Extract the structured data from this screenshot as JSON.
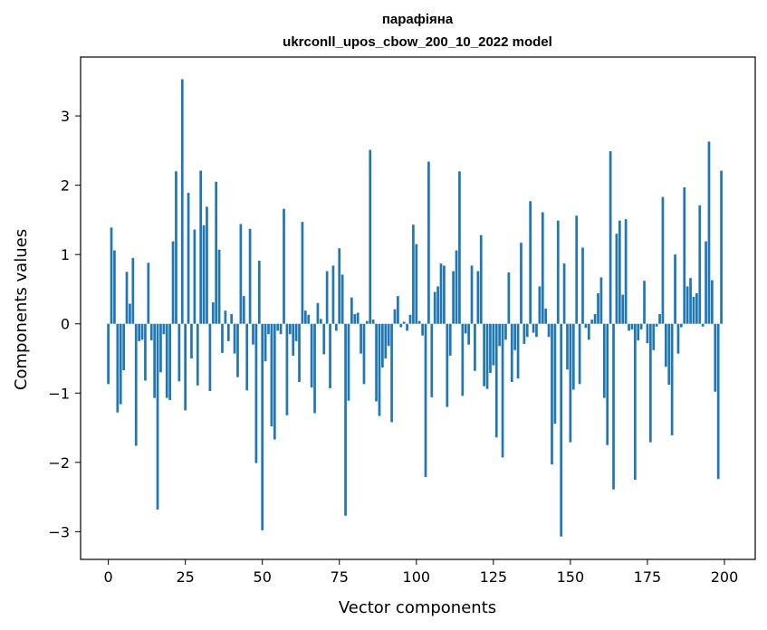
{
  "chart_data": {
    "type": "bar",
    "title": "парафіяна",
    "subtitle": "ukrconll_upos_cbow_200_10_2022 model",
    "xlabel": "Vector components",
    "ylabel": "Components values",
    "xlim": [
      -9,
      210
    ],
    "ylim": [
      -3.4,
      3.85
    ],
    "x_ticks": [
      0,
      25,
      50,
      75,
      100,
      125,
      150,
      175,
      200
    ],
    "x_tick_labels": [
      "0",
      "25",
      "50",
      "75",
      "100",
      "125",
      "150",
      "175",
      "200"
    ],
    "y_ticks": [
      -3,
      -2,
      -1,
      0,
      1,
      2,
      3
    ],
    "y_tick_labels": [
      "−3",
      "−2",
      "−1",
      "0",
      "1",
      "2",
      "3"
    ],
    "grid": false,
    "legend": false,
    "bar_color": "#1f77b4",
    "x": [
      0,
      1,
      2,
      3,
      4,
      5,
      6,
      7,
      8,
      9,
      10,
      11,
      12,
      13,
      14,
      15,
      16,
      17,
      18,
      19,
      20,
      21,
      22,
      23,
      24,
      25,
      26,
      27,
      28,
      29,
      30,
      31,
      32,
      33,
      34,
      35,
      36,
      37,
      38,
      39,
      40,
      41,
      42,
      43,
      44,
      45,
      46,
      47,
      48,
      49,
      50,
      51,
      52,
      53,
      54,
      55,
      56,
      57,
      58,
      59,
      60,
      61,
      62,
      63,
      64,
      65,
      66,
      67,
      68,
      69,
      70,
      71,
      72,
      73,
      74,
      75,
      76,
      77,
      78,
      79,
      80,
      81,
      82,
      83,
      84,
      85,
      86,
      87,
      88,
      89,
      90,
      91,
      92,
      93,
      94,
      95,
      96,
      97,
      98,
      99,
      100,
      101,
      102,
      103,
      104,
      105,
      106,
      107,
      108,
      109,
      110,
      111,
      112,
      113,
      114,
      115,
      116,
      117,
      118,
      119,
      120,
      121,
      122,
      123,
      124,
      125,
      126,
      127,
      128,
      129,
      130,
      131,
      132,
      133,
      134,
      135,
      136,
      137,
      138,
      139,
      140,
      141,
      142,
      143,
      144,
      145,
      146,
      147,
      148,
      149,
      150,
      151,
      152,
      153,
      154,
      155,
      156,
      157,
      158,
      159,
      160,
      161,
      162,
      163,
      164,
      165,
      166,
      167,
      168,
      169,
      170,
      171,
      172,
      173,
      174,
      175,
      176,
      177,
      178,
      179,
      180,
      181,
      182,
      183,
      184,
      185,
      186,
      187,
      188,
      189,
      190,
      191,
      192,
      193,
      194,
      195,
      196,
      197,
      198,
      199
    ],
    "values": [
      -0.87,
      1.39,
      1.06,
      -1.28,
      -1.16,
      -0.67,
      0.75,
      0.29,
      0.95,
      -1.76,
      -0.25,
      -0.23,
      -0.82,
      0.88,
      -0.24,
      -1.07,
      -2.68,
      -0.7,
      -0.15,
      -1.07,
      -1.1,
      1.19,
      2.2,
      -0.83,
      3.53,
      -1.25,
      1.89,
      -0.5,
      1.36,
      -0.89,
      2.21,
      1.42,
      1.69,
      -0.97,
      0.31,
      2.05,
      1.07,
      -0.42,
      0.19,
      -0.25,
      0.14,
      -0.43,
      -0.77,
      1.44,
      0.4,
      -0.96,
      1.37,
      -0.3,
      -2.01,
      0.91,
      -2.98,
      -0.54,
      -0.15,
      -1.48,
      -1.67,
      -0.1,
      -0.15,
      1.66,
      -1.32,
      -0.15,
      -0.46,
      -0.25,
      -0.84,
      1.47,
      0.19,
      0.13,
      -0.92,
      -1.29,
      0.3,
      0.07,
      -0.44,
      0.76,
      -0.93,
      0.84,
      -0.1,
      1.09,
      0.71,
      -2.77,
      -1.11,
      0.38,
      0.14,
      0.16,
      -0.43,
      -0.87,
      0.04,
      2.51,
      0.06,
      -1.12,
      -1.33,
      -0.63,
      -0.5,
      -0.32,
      -1.42,
      0.21,
      0.4,
      -0.05,
      0.03,
      -0.1,
      0.13,
      1.43,
      1.15,
      0.04,
      -0.17,
      -2.21,
      2.34,
      -1.06,
      0.46,
      0.54,
      0.87,
      0.84,
      -1.2,
      -0.46,
      0.76,
      1.06,
      2.2,
      -1.04,
      -0.14,
      -0.3,
      0.84,
      -0.68,
      0.76,
      1.28,
      -0.9,
      -0.94,
      -0.71,
      -0.6,
      -1.64,
      -0.32,
      -1.93,
      -0.23,
      0.74,
      -0.84,
      -0.38,
      -0.79,
      1.17,
      -0.29,
      -0.19,
      1.77,
      -0.13,
      -0.19,
      0.54,
      1.61,
      0.22,
      -0.19,
      -2.03,
      -1.44,
      1.49,
      -3.07,
      0.87,
      -0.66,
      -1.71,
      -0.95,
      1.56,
      -0.87,
      1.1,
      -0.06,
      -0.23,
      0.06,
      0.14,
      0.44,
      0.67,
      -1.07,
      -1.75,
      2.49,
      -2.39,
      1.3,
      1.49,
      0.42,
      1.51,
      -0.1,
      -0.08,
      -2.25,
      -0.24,
      -0.08,
      0.62,
      -0.28,
      -1.71,
      -0.38,
      -0.04,
      0.14,
      1.83,
      -0.62,
      -0.88,
      -1.61,
      1.0,
      -0.43,
      -0.05,
      1.97,
      0.54,
      0.66,
      0.39,
      0.44,
      1.71,
      -0.04,
      1.19,
      2.63,
      0.63,
      -0.98,
      -2.24,
      2.21
    ]
  }
}
